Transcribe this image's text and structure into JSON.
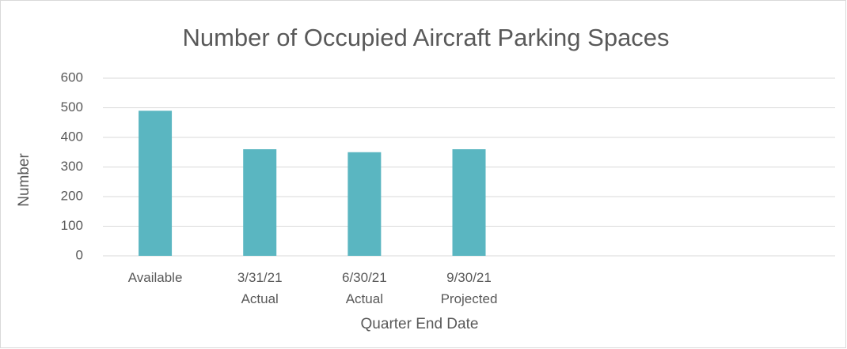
{
  "chart_data": {
    "type": "bar",
    "title": "Number of Occupied Aircraft Parking Spaces",
    "x_label": "Quarter End Date",
    "y_label": "Number",
    "categories": [
      "Available",
      "3/31/21 Actual",
      "6/30/21 Actual",
      "9/30/21 Projected",
      null,
      null,
      null
    ],
    "values": [
      490,
      360,
      350,
      360,
      null,
      null,
      null
    ],
    "color": "#5ab6c1",
    "ylim": [
      0,
      600
    ],
    "yticks": [
      0,
      100,
      200,
      300,
      400,
      500,
      600
    ],
    "grid": true
  }
}
